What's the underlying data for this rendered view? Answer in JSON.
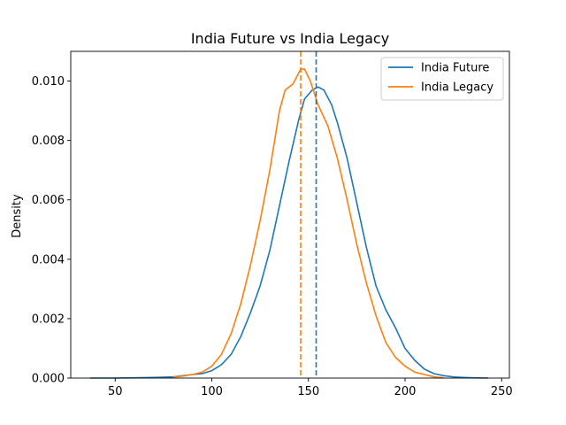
{
  "chart_data": {
    "type": "line",
    "title": "India Future vs India Legacy",
    "xlabel": "",
    "ylabel": "Density",
    "xlim": [
      27,
      254
    ],
    "ylim": [
      0,
      0.011
    ],
    "x_ticks": [
      50,
      100,
      150,
      200,
      250
    ],
    "y_ticks": [
      0.0,
      0.002,
      0.004,
      0.006,
      0.008,
      0.01
    ],
    "x_tick_labels": [
      "50",
      "100",
      "150",
      "200",
      "250"
    ],
    "y_tick_labels": [
      "0.000",
      "0.002",
      "0.004",
      "0.006",
      "0.008",
      "0.010"
    ],
    "grid": false,
    "legend_position": "top-right",
    "series": [
      {
        "name": "India Future",
        "color": "#1f77b4",
        "mean_line": 154,
        "points": [
          [
            37,
            0
          ],
          [
            50,
            0.0
          ],
          [
            60,
            1e-05
          ],
          [
            70,
            2e-05
          ],
          [
            80,
            4e-05
          ],
          [
            85,
            8e-05
          ],
          [
            90,
            0.00012
          ],
          [
            95,
            0.00015
          ],
          [
            100,
            0.00025
          ],
          [
            105,
            0.00045
          ],
          [
            110,
            0.0008
          ],
          [
            115,
            0.0014
          ],
          [
            120,
            0.0022
          ],
          [
            125,
            0.0031
          ],
          [
            130,
            0.0043
          ],
          [
            135,
            0.0058
          ],
          [
            140,
            0.0073
          ],
          [
            145,
            0.0087
          ],
          [
            148,
            0.0094
          ],
          [
            152,
            0.0097
          ],
          [
            155,
            0.0098
          ],
          [
            158,
            0.0097
          ],
          [
            162,
            0.0092
          ],
          [
            165,
            0.0086
          ],
          [
            170,
            0.0074
          ],
          [
            175,
            0.0059
          ],
          [
            180,
            0.0044
          ],
          [
            185,
            0.0031
          ],
          [
            190,
            0.0023
          ],
          [
            195,
            0.0017
          ],
          [
            200,
            0.001
          ],
          [
            205,
            0.0006
          ],
          [
            210,
            0.0003
          ],
          [
            215,
            0.00015
          ],
          [
            220,
            8e-05
          ],
          [
            225,
            4e-05
          ],
          [
            230,
            2e-05
          ],
          [
            235,
            1e-05
          ],
          [
            243,
            0
          ]
        ]
      },
      {
        "name": "India Legacy",
        "color": "#ff7f0e",
        "mean_line": 146,
        "points": [
          [
            80,
            3e-05
          ],
          [
            85,
            7e-05
          ],
          [
            90,
            0.00012
          ],
          [
            95,
            0.0002
          ],
          [
            100,
            0.0004
          ],
          [
            105,
            0.0008
          ],
          [
            110,
            0.0015
          ],
          [
            115,
            0.0025
          ],
          [
            120,
            0.0038
          ],
          [
            125,
            0.0053
          ],
          [
            130,
            0.007
          ],
          [
            135,
            0.009
          ],
          [
            138,
            0.0097
          ],
          [
            142,
            0.0099
          ],
          [
            146,
            0.0104
          ],
          [
            148,
            0.0104
          ],
          [
            151,
            0.01
          ],
          [
            155,
            0.0092
          ],
          [
            160,
            0.0085
          ],
          [
            165,
            0.0074
          ],
          [
            170,
            0.006
          ],
          [
            175,
            0.0045
          ],
          [
            180,
            0.0032
          ],
          [
            185,
            0.0021
          ],
          [
            190,
            0.0012
          ],
          [
            195,
            0.0007
          ],
          [
            200,
            0.0004
          ],
          [
            205,
            0.0002
          ],
          [
            210,
            0.00012
          ],
          [
            215,
            4e-05
          ],
          [
            220,
            1e-05
          ]
        ]
      }
    ]
  }
}
